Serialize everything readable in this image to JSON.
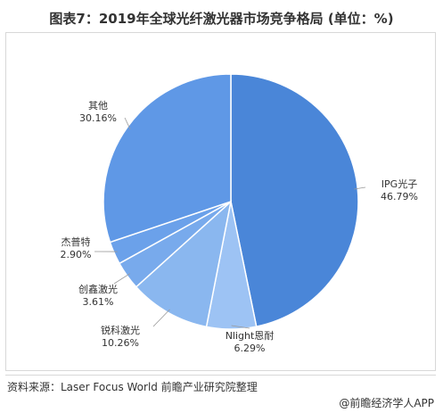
{
  "header": {
    "title": "图表7：2019年全球光纤激光器市场竞争格局 (单位：%)"
  },
  "chart_data": {
    "type": "pie",
    "title": "图表7：2019年全球光纤激光器市场竞争格局 (单位：%)",
    "slices": [
      {
        "name": "IPG光子",
        "value": 46.79,
        "pct_label": "46.79%",
        "color": "#4a86d8"
      },
      {
        "name": "Nlight恩耐",
        "value": 6.29,
        "pct_label": "6.29%",
        "color": "#9dc3f4"
      },
      {
        "name": "锐科激光",
        "value": 10.26,
        "pct_label": "10.26%",
        "color": "#8ab7ef"
      },
      {
        "name": "创鑫激光",
        "value": 3.61,
        "pct_label": "3.61%",
        "color": "#78aaec"
      },
      {
        "name": "杰普特",
        "value": 2.9,
        "pct_label": "2.90%",
        "color": "#6ba1ea"
      },
      {
        "name": "其他",
        "value": 30.16,
        "pct_label": "30.16%",
        "color": "#5f98e6"
      }
    ]
  },
  "footer": {
    "source": "资料来源：Laser Focus World 前瞻产业研究院整理",
    "brand": "@前瞻经济学人APP"
  }
}
